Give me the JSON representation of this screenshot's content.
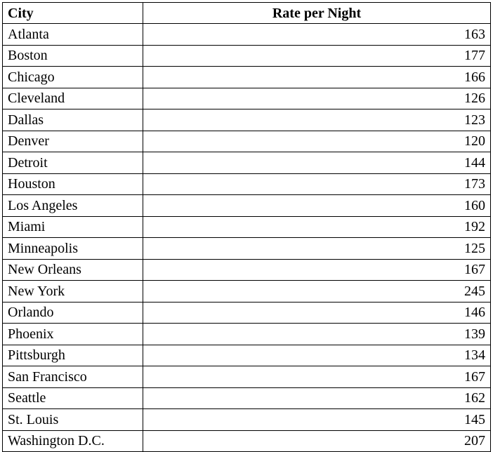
{
  "table": {
    "headers": {
      "city": "City",
      "rate": "Rate per Night"
    },
    "rows": [
      {
        "city": "Atlanta",
        "rate": "163"
      },
      {
        "city": "Boston",
        "rate": "177"
      },
      {
        "city": "Chicago",
        "rate": "166"
      },
      {
        "city": "Cleveland",
        "rate": "126"
      },
      {
        "city": "Dallas",
        "rate": "123"
      },
      {
        "city": "Denver",
        "rate": "120"
      },
      {
        "city": "Detroit",
        "rate": "144"
      },
      {
        "city": "Houston",
        "rate": "173"
      },
      {
        "city": "Los Angeles",
        "rate": "160"
      },
      {
        "city": "Miami",
        "rate": "192"
      },
      {
        "city": "Minneapolis",
        "rate": "125"
      },
      {
        "city": "New Orleans",
        "rate": "167"
      },
      {
        "city": "New York",
        "rate": "245"
      },
      {
        "city": "Orlando",
        "rate": "146"
      },
      {
        "city": "Phoenix",
        "rate": "139"
      },
      {
        "city": "Pittsburgh",
        "rate": "134"
      },
      {
        "city": "San Francisco",
        "rate": "167"
      },
      {
        "city": "Seattle",
        "rate": "162"
      },
      {
        "city": "St. Louis",
        "rate": "145"
      },
      {
        "city": "Washington D.C.",
        "rate": "207"
      }
    ]
  }
}
